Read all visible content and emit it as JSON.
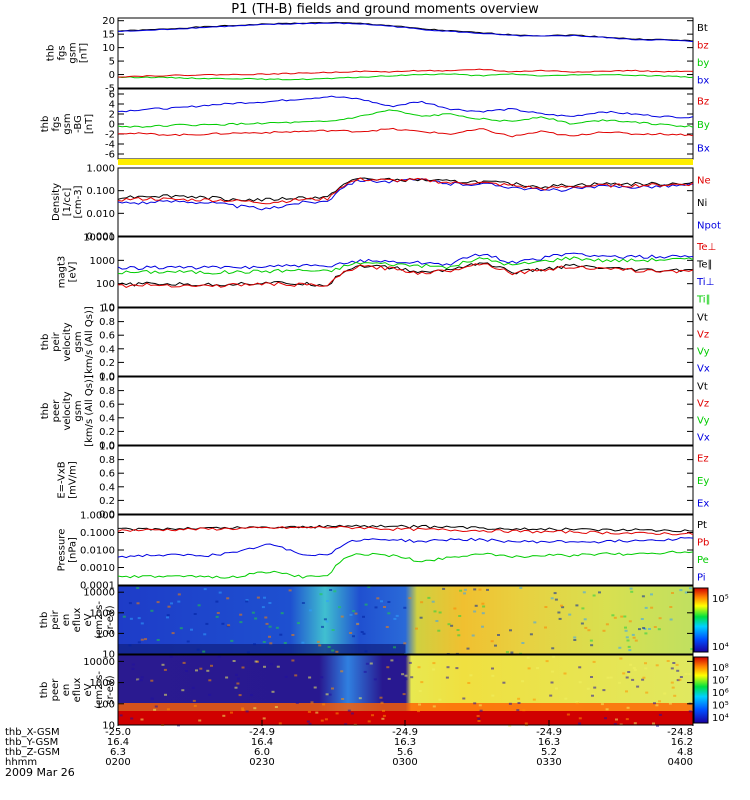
{
  "title": "P1 (TH-B) fields and ground moments overview",
  "colors": {
    "black": "#000000",
    "red": "#e00000",
    "green": "#00cc00",
    "blue": "#0000e0",
    "yellow": "#ffee00",
    "frame": "#000000"
  },
  "chart_data": [
    {
      "id": "fgs_gsm",
      "type": "line",
      "ylabel_lines": [
        "thb",
        "fgs",
        "gsm",
        "[nT]"
      ],
      "yticks": [
        20,
        15,
        10,
        5,
        0,
        -5
      ],
      "ylim": [
        -5,
        21
      ],
      "legend": [
        {
          "name": "Bt",
          "color": "#000000"
        },
        {
          "name": "bz",
          "color": "#e00000"
        },
        {
          "name": "by",
          "color": "#00cc00"
        },
        {
          "name": "bx",
          "color": "#0000e0"
        }
      ],
      "series": [
        {
          "name": "Bt",
          "color": "#000000",
          "values": [
            16.2,
            16.6,
            17.2,
            17.8,
            18.3,
            18.8,
            19.1,
            19.3,
            19.0,
            18.2,
            17.0,
            16.2,
            15.5,
            14.8,
            14.4,
            14.7,
            14.0,
            13.2,
            13.0,
            12.5
          ]
        },
        {
          "name": "bx",
          "color": "#0000e0",
          "values": [
            16.0,
            16.4,
            17.0,
            17.6,
            18.1,
            18.6,
            18.9,
            19.1,
            18.8,
            18.0,
            16.8,
            16.0,
            15.3,
            14.5,
            14.2,
            14.5,
            13.8,
            13.0,
            12.8,
            12.3
          ]
        },
        {
          "name": "by",
          "color": "#00cc00",
          "values": [
            -1.0,
            -1.0,
            -1.2,
            -1.5,
            -1.5,
            -1.8,
            -1.8,
            -1.5,
            -1.0,
            -0.5,
            0.0,
            0.2,
            -0.5,
            0.2,
            -0.5,
            -0.2,
            0.0,
            -0.3,
            -0.5,
            -1.0
          ]
        },
        {
          "name": "bz",
          "color": "#e00000",
          "values": [
            -0.8,
            -0.5,
            -0.3,
            -0.1,
            0.0,
            0.2,
            0.5,
            0.8,
            1.2,
            1.0,
            1.5,
            1.3,
            2.0,
            1.0,
            1.5,
            1.0,
            1.2,
            1.5,
            1.0,
            1.2
          ]
        }
      ]
    },
    {
      "id": "fgs_gsm2",
      "type": "line",
      "ylabel_lines": [
        "thb",
        "fgs",
        "gsm",
        "-BG",
        "[nT]"
      ],
      "yticks": [
        6,
        4,
        2,
        0,
        -2,
        -4,
        -6
      ],
      "ylim": [
        -7,
        7
      ],
      "legend": [
        {
          "name": "Bz",
          "color": "#e00000"
        },
        {
          "name": "By",
          "color": "#00cc00"
        },
        {
          "name": "Bx",
          "color": "#0000e0"
        }
      ],
      "series": [
        {
          "name": "Bx",
          "color": "#0000e0",
          "values": [
            2.5,
            3.0,
            3.2,
            3.8,
            4.2,
            4.5,
            5.0,
            5.5,
            5.0,
            3.5,
            4.5,
            3.0,
            2.5,
            3.0,
            2.0,
            1.5,
            2.5,
            2.0,
            1.5,
            1.3
          ]
        },
        {
          "name": "By",
          "color": "#00cc00",
          "values": [
            -0.5,
            -0.5,
            -0.2,
            -0.2,
            0.0,
            0.2,
            0.3,
            0.5,
            1.5,
            2.8,
            1.5,
            2.0,
            1.0,
            0.5,
            1.5,
            0.0,
            0.8,
            0.5,
            -0.2,
            -0.5
          ]
        },
        {
          "name": "Bz",
          "color": "#e00000",
          "values": [
            -1.8,
            -2.0,
            -2.2,
            -2.0,
            -1.8,
            -1.7,
            -1.5,
            -1.3,
            -1.5,
            -1.0,
            -1.5,
            -2.0,
            -1.0,
            -2.5,
            -1.5,
            -2.5,
            -1.5,
            -2.0,
            -2.0,
            -2.2
          ]
        }
      ]
    },
    {
      "id": "density",
      "type": "line",
      "log": true,
      "ylabel_lines": [
        "Density",
        "[1/cc]",
        "[cm-3]"
      ],
      "yticks": [
        "1.000",
        "0.100",
        "0.010",
        "0.001"
      ],
      "ylim": [
        0.001,
        1.0
      ],
      "legend": [
        {
          "name": "Ne",
          "color": "#e00000"
        },
        {
          "name": "Ni",
          "color": "#000000"
        },
        {
          "name": "Npot",
          "color": "#0000e0"
        }
      ],
      "series": [
        {
          "name": "Npot",
          "color": "#0000e0",
          "values": [
            0.03,
            0.03,
            0.035,
            0.03,
            0.02,
            0.015,
            0.03,
            0.035,
            0.3,
            0.25,
            0.3,
            0.2,
            0.2,
            0.15,
            0.1,
            0.12,
            0.15,
            0.15,
            0.16,
            0.18
          ]
        },
        {
          "name": "Ni",
          "color": "#000000",
          "values": [
            0.05,
            0.06,
            0.06,
            0.05,
            0.04,
            0.04,
            0.05,
            0.05,
            0.35,
            0.3,
            0.3,
            0.25,
            0.25,
            0.2,
            0.15,
            0.18,
            0.2,
            0.2,
            0.2,
            0.22
          ]
        },
        {
          "name": "Ne",
          "color": "#e00000",
          "values": [
            0.04,
            0.045,
            0.04,
            0.04,
            0.035,
            0.03,
            0.04,
            0.045,
            0.32,
            0.28,
            0.3,
            0.22,
            0.22,
            0.17,
            0.12,
            0.15,
            0.17,
            0.17,
            0.18,
            0.2
          ]
        }
      ]
    },
    {
      "id": "temps",
      "type": "line",
      "log": true,
      "ylabel_lines": [
        "magt3",
        "[eV]"
      ],
      "yticks": [
        "10000",
        "1000",
        "100",
        "10"
      ],
      "ylim": [
        10,
        10000
      ],
      "legend": [
        {
          "name": "Te⊥",
          "color": "#e00000"
        },
        {
          "name": "Te∥",
          "color": "#000000"
        },
        {
          "name": "Ti⊥",
          "color": "#0000e0"
        },
        {
          "name": "Ti∥",
          "color": "#00cc00"
        }
      ],
      "series": [
        {
          "name": "Ti⊥",
          "color": "#0000e0",
          "values": [
            450,
            500,
            520,
            480,
            500,
            550,
            600,
            520,
            1000,
            900,
            800,
            700,
            1800,
            800,
            1200,
            2000,
            1500,
            1400,
            1500,
            1500
          ]
        },
        {
          "name": "Ti∥",
          "color": "#00cc00",
          "values": [
            300,
            320,
            330,
            300,
            320,
            350,
            380,
            330,
            800,
            700,
            600,
            500,
            1200,
            600,
            900,
            1300,
            1000,
            1000,
            1100,
            1100
          ]
        },
        {
          "name": "Te∥",
          "color": "#000000",
          "values": [
            90,
            100,
            95,
            90,
            100,
            110,
            100,
            90,
            600,
            500,
            300,
            400,
            800,
            300,
            400,
            600,
            450,
            400,
            350,
            400
          ]
        },
        {
          "name": "Te⊥",
          "color": "#e00000",
          "values": [
            80,
            90,
            85,
            80,
            90,
            100,
            90,
            80,
            550,
            450,
            280,
            380,
            750,
            280,
            380,
            550,
            420,
            380,
            330,
            380
          ]
        }
      ]
    },
    {
      "id": "peir_vel",
      "type": "line",
      "ylabel_lines": [
        "thb",
        "peir",
        "velocity",
        "gsm",
        "[km/s (All Qs)]"
      ],
      "yticks": [
        "1.0",
        "0.8",
        "0.6",
        "0.4",
        "0.2",
        "0.0"
      ],
      "ylim": [
        0,
        1
      ],
      "legend": [
        {
          "name": "Vt",
          "color": "#000000"
        },
        {
          "name": "Vz",
          "color": "#e00000"
        },
        {
          "name": "Vy",
          "color": "#00cc00"
        },
        {
          "name": "Vx",
          "color": "#0000e0"
        }
      ],
      "series": []
    },
    {
      "id": "peer_vel",
      "type": "line",
      "ylabel_lines": [
        "thb",
        "peer",
        "velocity",
        "gsm",
        "[km/s (All Qs)]"
      ],
      "yticks": [
        "1.0",
        "0.8",
        "0.6",
        "0.4",
        "0.2",
        "0.0"
      ],
      "ylim": [
        0,
        1
      ],
      "legend": [
        {
          "name": "Vt",
          "color": "#000000"
        },
        {
          "name": "Vz",
          "color": "#e00000"
        },
        {
          "name": "Vy",
          "color": "#00cc00"
        },
        {
          "name": "Vx",
          "color": "#0000e0"
        }
      ],
      "series": []
    },
    {
      "id": "efield",
      "type": "line",
      "ylabel_lines": [
        "E=-VxB",
        "[mV/m]"
      ],
      "yticks": [
        "1.0",
        "0.8",
        "0.6",
        "0.4",
        "0.2",
        "0.0"
      ],
      "ylim": [
        0,
        1
      ],
      "legend": [
        {
          "name": "Ez",
          "color": "#e00000"
        },
        {
          "name": "Ey",
          "color": "#00cc00"
        },
        {
          "name": "Ex",
          "color": "#0000e0"
        }
      ],
      "series": []
    },
    {
      "id": "pressure",
      "type": "line",
      "log": true,
      "ylabel_lines": [
        "Pressure",
        "[nPa]"
      ],
      "yticks": [
        "1.0000",
        "0.1000",
        "0.0100",
        "0.0010",
        "0.0001"
      ],
      "ylim": [
        0.0001,
        1.0
      ],
      "legend": [
        {
          "name": "Pt",
          "color": "#000000"
        },
        {
          "name": "Pb",
          "color": "#e00000"
        },
        {
          "name": "Pe",
          "color": "#00cc00"
        },
        {
          "name": "Pi",
          "color": "#0000e0"
        }
      ],
      "series": [
        {
          "name": "Pt",
          "color": "#000000",
          "values": [
            0.15,
            0.16,
            0.17,
            0.18,
            0.19,
            0.2,
            0.21,
            0.22,
            0.25,
            0.22,
            0.22,
            0.2,
            0.18,
            0.17,
            0.16,
            0.16,
            0.15,
            0.14,
            0.14,
            0.13
          ]
        },
        {
          "name": "Pb",
          "color": "#e00000",
          "values": [
            0.13,
            0.14,
            0.15,
            0.16,
            0.17,
            0.18,
            0.19,
            0.2,
            0.19,
            0.16,
            0.15,
            0.14,
            0.13,
            0.12,
            0.11,
            0.11,
            0.1,
            0.09,
            0.09,
            0.08
          ]
        },
        {
          "name": "Pi",
          "color": "#0000e0",
          "values": [
            0.004,
            0.005,
            0.005,
            0.005,
            0.007,
            0.02,
            0.006,
            0.005,
            0.04,
            0.04,
            0.03,
            0.04,
            0.04,
            0.03,
            0.03,
            0.03,
            0.03,
            0.035,
            0.04,
            0.05
          ]
        },
        {
          "name": "Pe",
          "color": "#00cc00",
          "values": [
            0.0003,
            0.0003,
            0.0003,
            0.0003,
            0.0003,
            0.0006,
            0.0003,
            0.0003,
            0.006,
            0.005,
            0.002,
            0.004,
            0.006,
            0.004,
            0.005,
            0.005,
            0.006,
            0.006,
            0.007,
            0.008
          ]
        }
      ]
    },
    {
      "id": "peir_spec",
      "type": "heatmap",
      "ylabel_lines": [
        "thb",
        "peir",
        "en",
        "eflux",
        "eV",
        "(cm2-s-",
        "sr-eV)"
      ],
      "yticks": [
        "10000",
        "1000",
        "100",
        "10"
      ],
      "ylim": [
        10,
        20000
      ],
      "colorbar_ticks": [
        "10⁵",
        "10⁴"
      ]
    },
    {
      "id": "peer_spec",
      "type": "heatmap",
      "ylabel_lines": [
        "thb",
        "peer",
        "en",
        "eflux",
        "eV",
        "(cm2-s-",
        "sr-eV)"
      ],
      "yticks": [
        "10000",
        "1000",
        "100",
        "10"
      ],
      "ylim": [
        10,
        20000
      ],
      "colorbar_ticks": [
        "10⁸",
        "10⁷",
        "10⁶",
        "10⁵",
        "10⁴"
      ]
    }
  ],
  "axis": {
    "rows": [
      {
        "label": "thb_X-GSM",
        "values": [
          "-25.0",
          "-24.9",
          "-24.9",
          "-24.9",
          "-24.8"
        ]
      },
      {
        "label": "thb_Y-GSM",
        "values": [
          "16.4",
          "16.4",
          "16.3",
          "16.3",
          "16.2"
        ]
      },
      {
        "label": "thb_Z-GSM",
        "values": [
          "6.3",
          "6.0",
          "5.6",
          "5.2",
          "4.8"
        ]
      },
      {
        "label": "hhmm",
        "values": [
          "0200",
          "0230",
          "0300",
          "0330",
          "0400"
        ]
      }
    ],
    "date": "2009 Mar 26"
  }
}
